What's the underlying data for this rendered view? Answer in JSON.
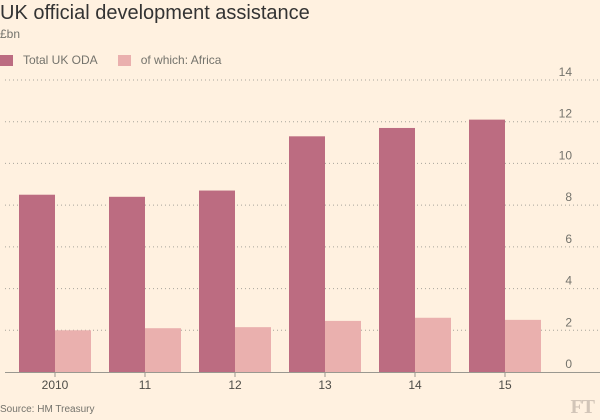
{
  "title": "UK official development assistance",
  "subtitle": "£bn",
  "source": "Source: HM Treasury",
  "logo": "FT",
  "colors": {
    "background": "#fff1e0",
    "total": "#bc6c81",
    "africa": "#eab0ae",
    "grid": "#a7a59b",
    "axis": "#9a9890",
    "text": "#74736c"
  },
  "chart_data": {
    "type": "bar",
    "title": "UK official development assistance",
    "ylabel": "£bn",
    "xlabel": "",
    "ylim": [
      0,
      14
    ],
    "yticks": [
      "0",
      "2",
      "4",
      "6",
      "8",
      "10",
      "12",
      "14"
    ],
    "categories": [
      "2010",
      "11",
      "12",
      "13",
      "14",
      "15"
    ],
    "series": [
      {
        "name": "Total UK ODA",
        "values": [
          8.5,
          8.4,
          8.7,
          11.3,
          11.7,
          12.1
        ]
      },
      {
        "name": "of which: Africa",
        "values": [
          2.0,
          2.1,
          2.15,
          2.45,
          2.6,
          2.5
        ]
      }
    ],
    "legend_position": "top-left",
    "grid": true
  }
}
